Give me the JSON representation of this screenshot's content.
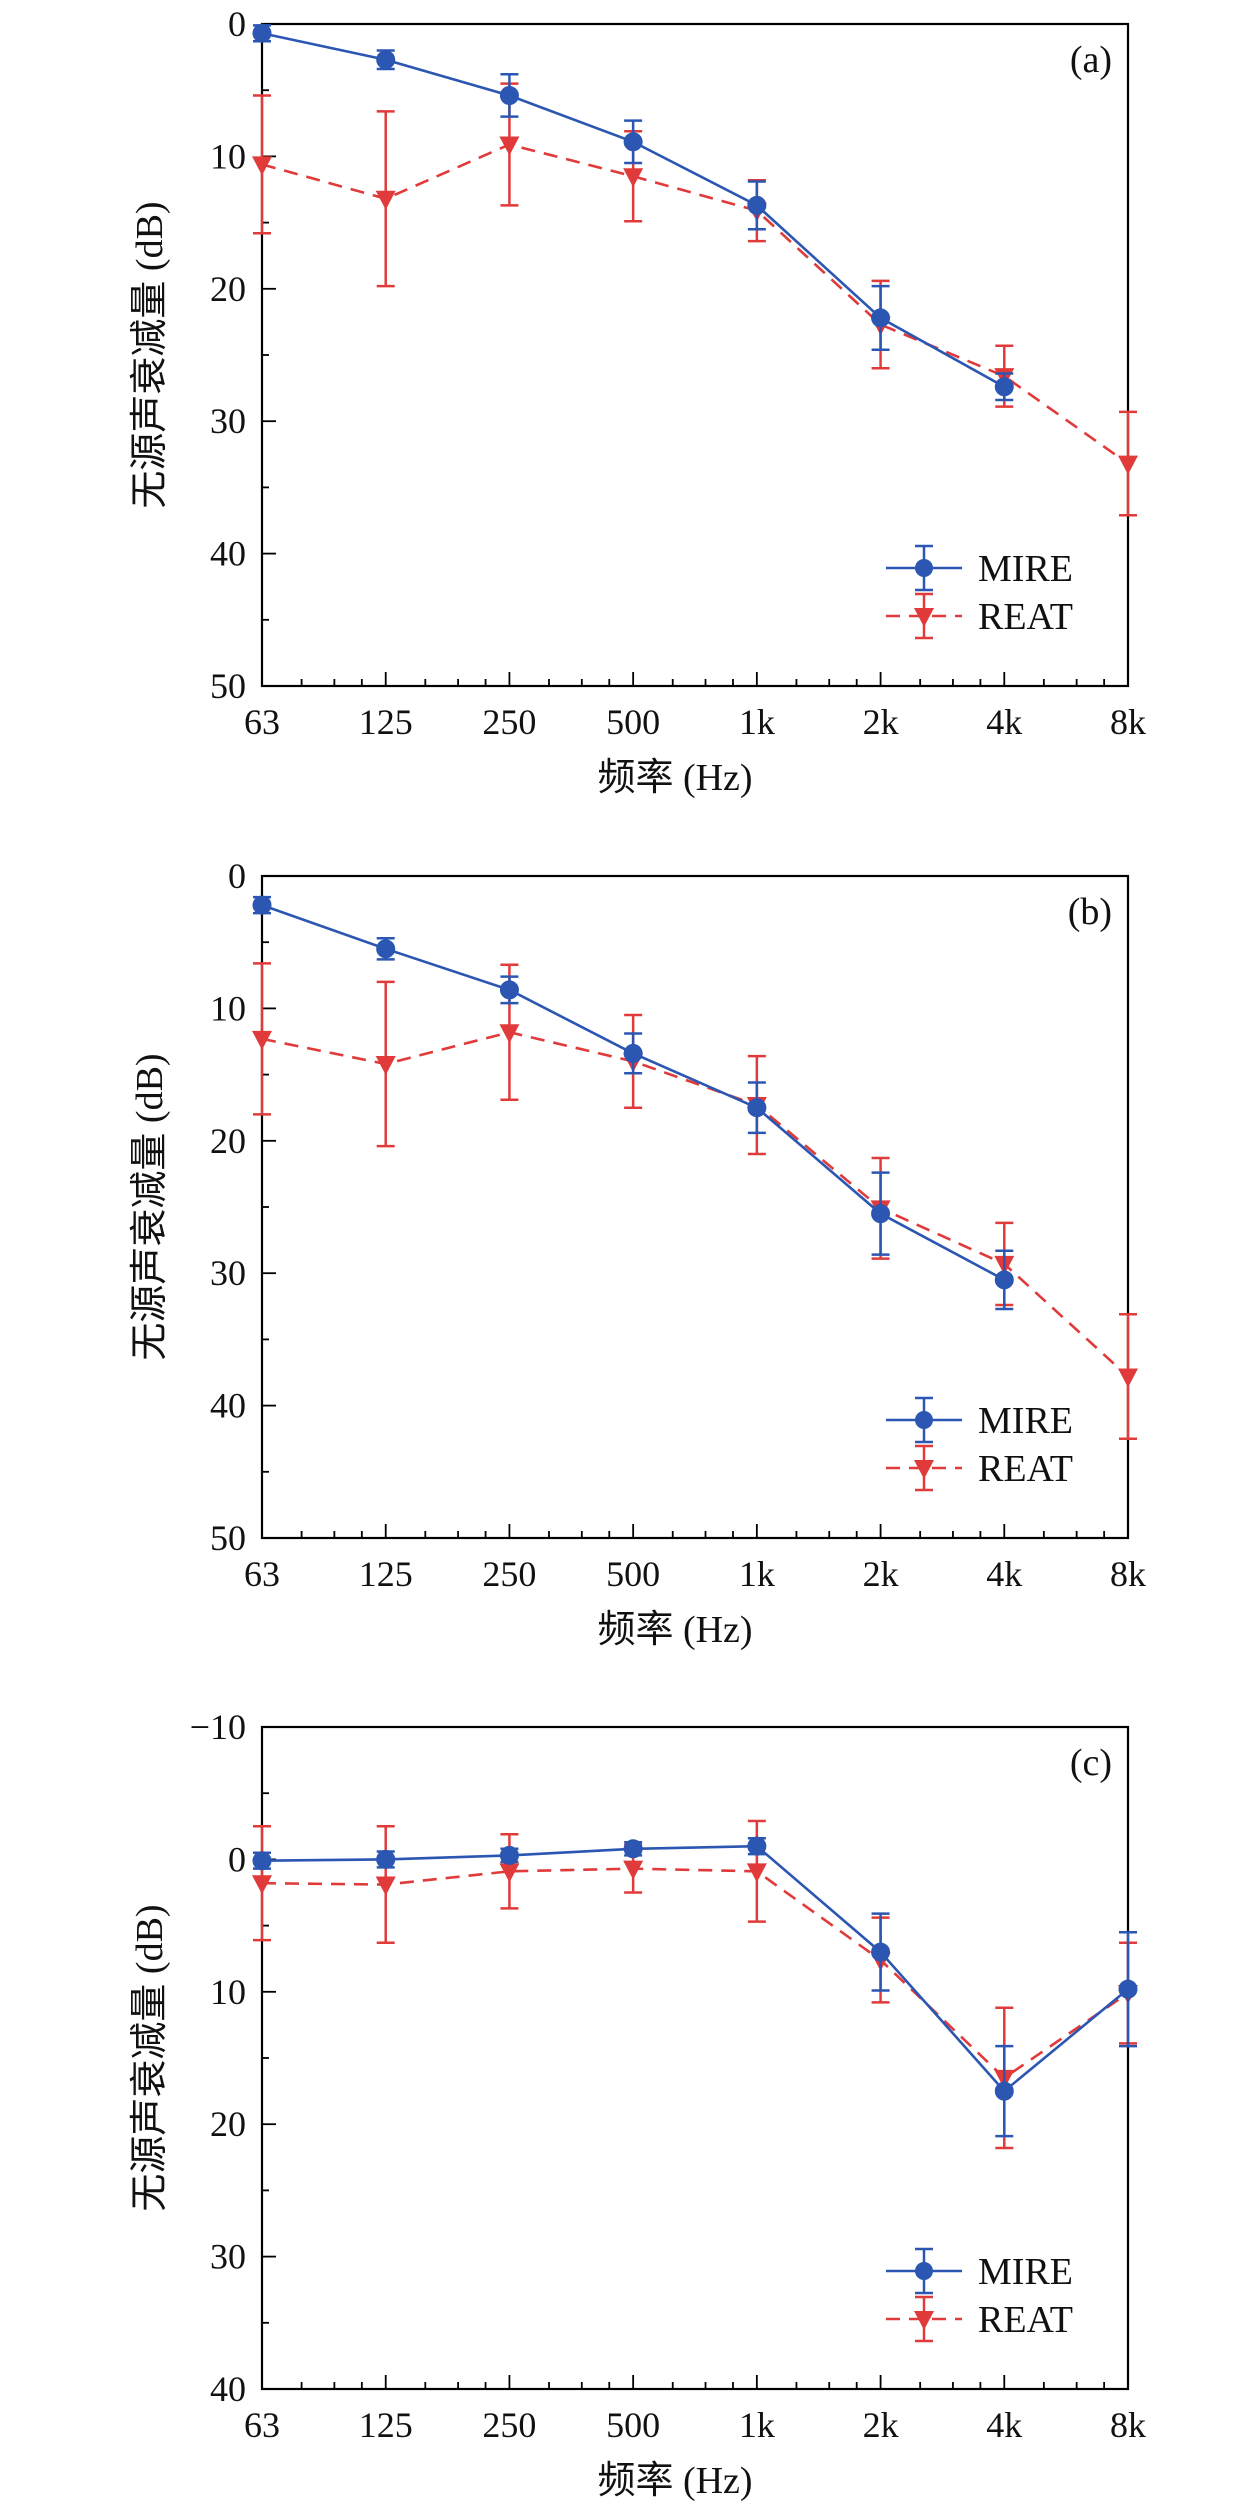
{
  "colors": {
    "mire": "#2b56b2",
    "reat": "#e03a3a",
    "axis": "#000000"
  },
  "chart_data": [
    {
      "type": "line",
      "panel_label": "(a)",
      "ylabel": "无源声衰减量 (dB)",
      "xlabel": "频率 (Hz)",
      "categories": [
        "63",
        "125",
        "250",
        "500",
        "1k",
        "2k",
        "4k",
        "8k"
      ],
      "x_scale": "log",
      "ylim": [
        50,
        0
      ],
      "y_ticks": [
        "0",
        "10",
        "20",
        "30",
        "40",
        "50"
      ],
      "legend": "bottom-right",
      "series": [
        {
          "name": "MIRE",
          "style": "solid",
          "marker": "circle",
          "values": [
            0.7,
            2.7,
            5.4,
            8.9,
            13.7,
            22.2,
            27.4,
            null
          ],
          "errors": [
            0.6,
            0.7,
            1.6,
            1.6,
            1.8,
            2.4,
            1.0,
            null
          ]
        },
        {
          "name": "REAT",
          "style": "dashed",
          "marker": "triangle-down",
          "values": [
            10.6,
            13.2,
            9.1,
            11.5,
            14.1,
            22.7,
            26.6,
            33.2
          ],
          "errors": [
            5.2,
            6.6,
            4.6,
            3.4,
            2.3,
            3.3,
            2.3,
            3.9
          ]
        }
      ]
    },
    {
      "type": "line",
      "panel_label": "(b)",
      "ylabel": "无源声衰减量 (dB)",
      "xlabel": "频率 (Hz)",
      "categories": [
        "63",
        "125",
        "250",
        "500",
        "1k",
        "2k",
        "4k",
        "8k"
      ],
      "x_scale": "log",
      "ylim": [
        50,
        0
      ],
      "y_ticks": [
        "0",
        "10",
        "20",
        "30",
        "40",
        "50"
      ],
      "legend": "bottom-right",
      "series": [
        {
          "name": "MIRE",
          "style": "solid",
          "marker": "circle",
          "values": [
            2.2,
            5.5,
            8.6,
            13.4,
            17.5,
            25.5,
            30.5,
            null
          ],
          "errors": [
            0.6,
            0.8,
            1.0,
            1.5,
            1.9,
            3.1,
            2.2,
            null
          ]
        },
        {
          "name": "REAT",
          "style": "dashed",
          "marker": "triangle-down",
          "values": [
            12.3,
            14.2,
            11.8,
            14.0,
            17.3,
            25.1,
            29.3,
            37.8
          ],
          "errors": [
            5.7,
            6.2,
            5.1,
            3.5,
            3.7,
            3.8,
            3.1,
            4.7
          ]
        }
      ]
    },
    {
      "type": "line",
      "panel_label": "(c)",
      "ylabel": "无源声衰减量 (dB)",
      "xlabel": "频率 (Hz)",
      "categories": [
        "63",
        "125",
        "250",
        "500",
        "1k",
        "2k",
        "4k",
        "8k"
      ],
      "x_scale": "log",
      "ylim": [
        40,
        -10
      ],
      "y_ticks": [
        "−10",
        "0",
        "10",
        "20",
        "30",
        "40"
      ],
      "legend": "bottom-right",
      "series": [
        {
          "name": "MIRE",
          "style": "solid",
          "marker": "circle",
          "values": [
            0.1,
            0.0,
            -0.3,
            -0.8,
            -1.0,
            7.0,
            17.5,
            9.8
          ],
          "errors": [
            0.6,
            0.6,
            0.5,
            0.5,
            0.6,
            2.9,
            3.4,
            4.3
          ]
        },
        {
          "name": "REAT",
          "style": "dashed",
          "marker": "triangle-down",
          "values": [
            1.8,
            1.9,
            0.9,
            0.7,
            0.9,
            7.6,
            16.5,
            10.1
          ],
          "errors": [
            4.3,
            4.4,
            2.8,
            1.8,
            3.8,
            3.2,
            5.3,
            3.8
          ]
        }
      ]
    }
  ]
}
